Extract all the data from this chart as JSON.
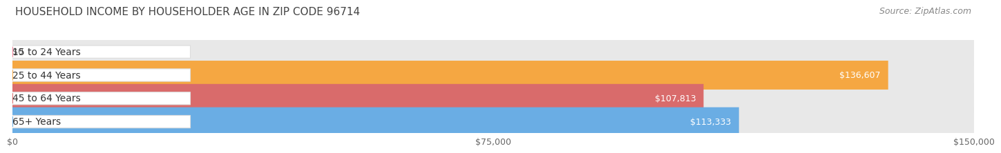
{
  "title": "HOUSEHOLD INCOME BY HOUSEHOLDER AGE IN ZIP CODE 96714",
  "source": "Source: ZipAtlas.com",
  "categories": [
    "15 to 24 Years",
    "25 to 44 Years",
    "45 to 64 Years",
    "65+ Years"
  ],
  "values": [
    0,
    136607,
    107813,
    113333
  ],
  "labels": [
    "$0",
    "$136,607",
    "$107,813",
    "$113,333"
  ],
  "bar_colors": [
    "#f08098",
    "#f5a742",
    "#d96b6b",
    "#6aade4"
  ],
  "bar_height": 0.62,
  "xlim": [
    0,
    150000
  ],
  "xtick_labels": [
    "$0",
    "$75,000",
    "$150,000"
  ],
  "background_color": "#ffffff",
  "bar_bg_color": "#e8e8e8",
  "title_fontsize": 11,
  "source_fontsize": 9,
  "tick_fontsize": 9,
  "category_fontsize": 10
}
